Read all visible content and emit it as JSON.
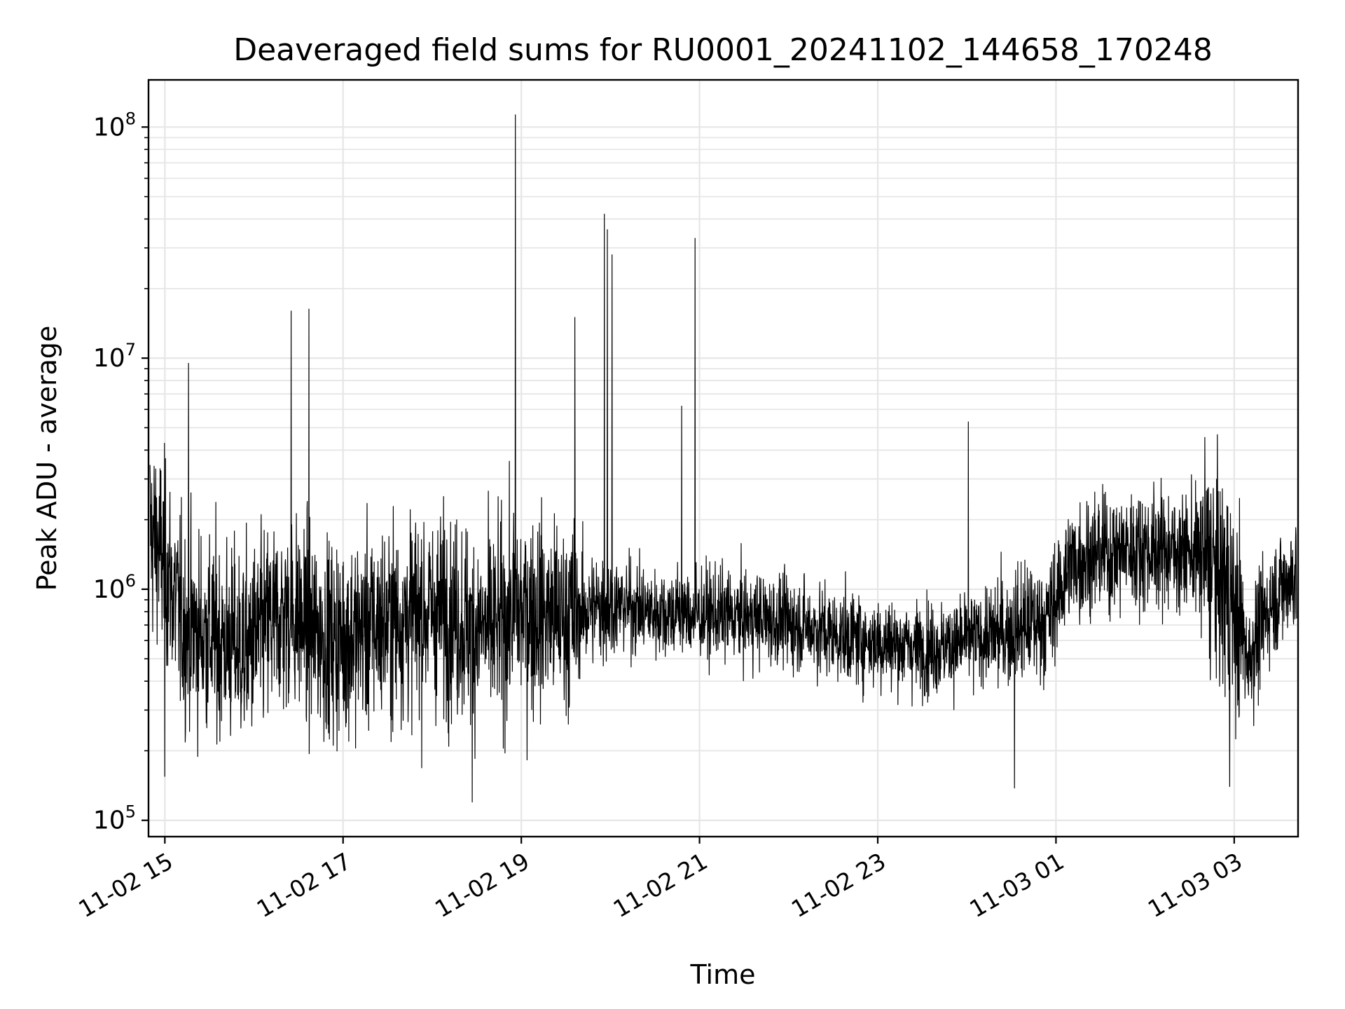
{
  "chart_data": {
    "type": "line",
    "title": "Deaveraged field sums for RU0001_20241102_144658_170248",
    "xlabel": "Time",
    "ylabel": "Peak ADU - average",
    "yscale": "log",
    "ylim": [
      85000,
      160000000
    ],
    "xlim": [
      "2024-11-02 14:49",
      "2024-11-03 03:43"
    ],
    "grid": true,
    "line_color": "#000000",
    "grid_color": "#e6e6e6",
    "x_ticks": [
      "11-02 15",
      "11-02 17",
      "11-02 19",
      "11-02 21",
      "11-02 23",
      "11-03 01",
      "11-03 03"
    ],
    "y_ticks": [
      {
        "value": 100000,
        "base": "10",
        "exp": "5"
      },
      {
        "value": 1000000,
        "base": "10",
        "exp": "6"
      },
      {
        "value": 10000000,
        "base": "10",
        "exp": "7"
      },
      {
        "value": 100000000,
        "base": "10",
        "exp": "8"
      }
    ],
    "series": [
      {
        "x": [
          "2024-11-02 14:50",
          "2024-11-02 15:00",
          "2024-11-02 15:12",
          "2024-11-02 15:25",
          "2024-11-02 15:40",
          "2024-11-02 15:55",
          "2024-11-02 16:10",
          "2024-11-02 16:25",
          "2024-11-02 16:40",
          "2024-11-02 16:55",
          "2024-11-02 17:10",
          "2024-11-02 17:25",
          "2024-11-02 17:40",
          "2024-11-02 17:55",
          "2024-11-02 18:10",
          "2024-11-02 18:25",
          "2024-11-02 18:40",
          "2024-11-02 18:55",
          "2024-11-02 19:10",
          "2024-11-02 19:25",
          "2024-11-02 19:40",
          "2024-11-02 19:55",
          "2024-11-02 20:10",
          "2024-11-02 20:25",
          "2024-11-02 20:40",
          "2024-11-02 20:55",
          "2024-11-02 21:10",
          "2024-11-02 21:25",
          "2024-11-02 21:40",
          "2024-11-02 21:55",
          "2024-11-02 22:10",
          "2024-11-02 22:25",
          "2024-11-02 22:40",
          "2024-11-02 22:55",
          "2024-11-02 23:10",
          "2024-11-02 23:25",
          "2024-11-02 23:40",
          "2024-11-02 23:55",
          "2024-11-03 00:10",
          "2024-11-03 00:25",
          "2024-11-03 00:40",
          "2024-11-03 00:55",
          "2024-11-03 01:10",
          "2024-11-03 01:25",
          "2024-11-03 01:40",
          "2024-11-03 01:55",
          "2024-11-03 02:10",
          "2024-11-03 02:25",
          "2024-11-03 02:40",
          "2024-11-03 02:55",
          "2024-11-03 03:10",
          "2024-11-03 03:25",
          "2024-11-03 03:42"
        ],
        "y": [
          1800000,
          1300000,
          700000,
          650000,
          600000,
          550000,
          700000,
          800000,
          650000,
          600000,
          650000,
          700000,
          750000,
          800000,
          800000,
          700000,
          650000,
          800000,
          800000,
          750000,
          800000,
          850000,
          850000,
          800000,
          800000,
          780000,
          780000,
          760000,
          750000,
          720000,
          700000,
          650000,
          620000,
          600000,
          580000,
          560000,
          560000,
          580000,
          620000,
          650000,
          700000,
          750000,
          1300000,
          1400000,
          1450000,
          1500000,
          1500000,
          1450000,
          1400000,
          1000000,
          500000,
          900000,
          1200000
        ]
      }
    ],
    "peaks": [
      {
        "x": "2024-11-02 15:16",
        "y": 9500000
      },
      {
        "x": "2024-11-02 16:25",
        "y": 16000000
      },
      {
        "x": "2024-11-02 16:37",
        "y": 16300000
      },
      {
        "x": "2024-11-02 18:56",
        "y": 113000000
      },
      {
        "x": "2024-11-02 19:36",
        "y": 15000000
      },
      {
        "x": "2024-11-02 19:56",
        "y": 42000000
      },
      {
        "x": "2024-11-02 19:58",
        "y": 36000000
      },
      {
        "x": "2024-11-02 20:01",
        "y": 28000000
      },
      {
        "x": "2024-11-02 20:57",
        "y": 33000000
      },
      {
        "x": "2024-11-02 20:48",
        "y": 6200000
      },
      {
        "x": "2024-11-03 00:01",
        "y": 5300000
      },
      {
        "x": "2024-11-02 15:00",
        "y": 155000
      },
      {
        "x": "2024-11-02 18:27",
        "y": 120000
      },
      {
        "x": "2024-11-03 00:32",
        "y": 138000
      },
      {
        "x": "2024-11-03 02:57",
        "y": 140000
      }
    ]
  }
}
